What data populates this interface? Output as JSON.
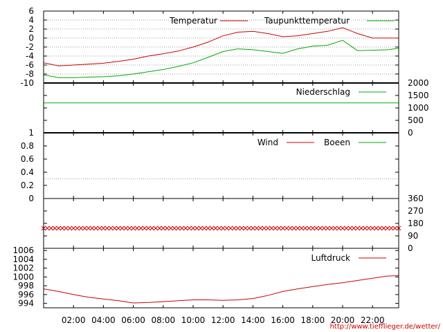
{
  "chart_data": [
    {
      "type": "line",
      "ylim": [
        -10,
        6
      ],
      "yticks": [
        6,
        4,
        2,
        0,
        -2,
        -4,
        -6,
        -8,
        -10
      ],
      "legend_placement": "top-right",
      "grid": "horizontal-dotted",
      "x_hours": [
        0,
        1,
        2,
        3,
        4,
        5,
        6,
        7,
        8,
        9,
        10,
        11,
        12,
        13,
        14,
        15,
        16,
        17,
        18,
        19,
        20,
        21,
        22,
        23,
        23.75
      ],
      "series": [
        {
          "name": "Temperatur",
          "color": "#cc0000",
          "values": [
            -5.5,
            -6.2,
            -6.0,
            -5.8,
            -5.6,
            -5.2,
            -4.7,
            -4.0,
            -3.5,
            -2.9,
            -2.0,
            -0.9,
            0.5,
            1.3,
            1.5,
            1.0,
            0.3,
            0.5,
            1.0,
            1.5,
            2.3,
            1.0,
            0.0,
            0.0,
            0.0
          ]
        },
        {
          "name": "Taupunkttemperatur",
          "color": "#00aa00",
          "values": [
            -8.2,
            -8.8,
            -8.8,
            -8.7,
            -8.6,
            -8.4,
            -8.0,
            -7.5,
            -7.0,
            -6.3,
            -5.5,
            -4.3,
            -3.0,
            -2.4,
            -2.6,
            -3.0,
            -3.4,
            -2.4,
            -1.8,
            -1.6,
            -0.5,
            -2.8,
            -2.7,
            -2.6,
            -2.3
          ]
        }
      ]
    },
    {
      "type": "line",
      "ylim": [
        0,
        2000
      ],
      "yticks": [
        2000,
        1500,
        1000,
        500,
        0
      ],
      "legend_placement": "top-right",
      "x_hours": [
        0,
        23.75
      ],
      "series": [
        {
          "name": "Niederschlag",
          "color": "#00aa00",
          "values": [
            1200,
            1200
          ]
        }
      ]
    },
    {
      "type": "line",
      "ylim": [
        0,
        1
      ],
      "yticks": [
        1,
        0.8,
        0.6,
        0.4,
        0.2,
        0
      ],
      "legend_placement": "top-right",
      "reference_line": 0.3,
      "series": [
        {
          "name": "Wind",
          "color": "#cc0000",
          "values": []
        },
        {
          "name": "Boeen",
          "color": "#00aa00",
          "values": []
        }
      ]
    },
    {
      "type": "scatter",
      "ylim": [
        0,
        360
      ],
      "yticks": [
        360,
        270,
        180,
        90,
        0
      ],
      "marker": "x",
      "color": "#cc0000",
      "x_start_hour": 0,
      "x_end_hour": 23.75,
      "x_step_hour": 0.25,
      "constant_value": 145
    },
    {
      "type": "line",
      "ylim": [
        993,
        1006.5
      ],
      "yticks": [
        1006,
        1004,
        1002,
        1000,
        998,
        996,
        994
      ],
      "legend_placement": "top-right",
      "x_hours": [
        0,
        1,
        2,
        3,
        4,
        5,
        6,
        7,
        8,
        9,
        10,
        11,
        12,
        13,
        14,
        15,
        16,
        17,
        18,
        19,
        20,
        21,
        22,
        23,
        23.75
      ],
      "series": [
        {
          "name": "Luftdruck",
          "color": "#cc0000",
          "values": [
            997.3,
            996.7,
            996.0,
            995.4,
            995.0,
            994.6,
            994.1,
            994.2,
            994.4,
            994.6,
            994.8,
            994.8,
            994.7,
            994.8,
            995.1,
            995.8,
            996.7,
            997.3,
            997.8,
            998.3,
            998.7,
            999.2,
            999.7,
            1000.2,
            1000.3
          ]
        }
      ]
    }
  ],
  "x_axis": {
    "range_hours": [
      0,
      23.75
    ],
    "ticks": [
      {
        "hour": 2,
        "label": "02:00"
      },
      {
        "hour": 4,
        "label": "04:00"
      },
      {
        "hour": 6,
        "label": "06:00"
      },
      {
        "hour": 8,
        "label": "08:00"
      },
      {
        "hour": 10,
        "label": "10:00"
      },
      {
        "hour": 12,
        "label": "12:00"
      },
      {
        "hour": 14,
        "label": "14:00"
      },
      {
        "hour": 16,
        "label": "16:00"
      },
      {
        "hour": 18,
        "label": "18:00"
      },
      {
        "hour": 20,
        "label": "20:00"
      },
      {
        "hour": 22,
        "label": "22:00"
      }
    ]
  },
  "credit": "http://www.tiefflieger.de/wetter/"
}
